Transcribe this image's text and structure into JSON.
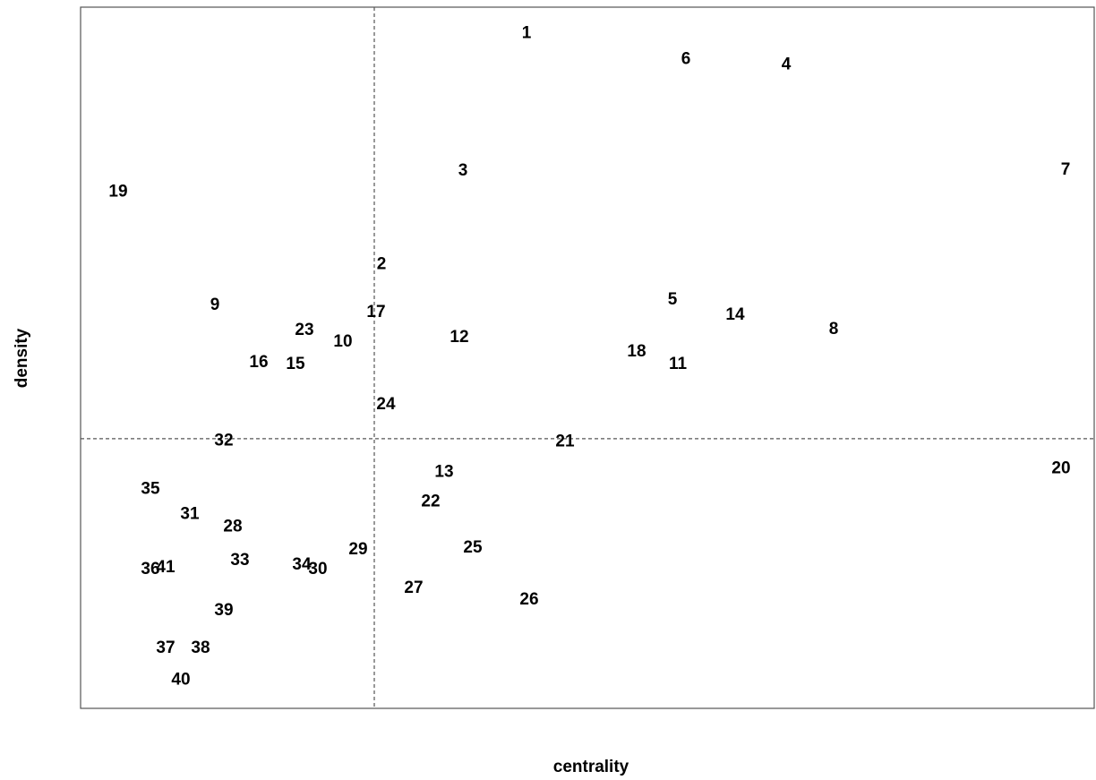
{
  "chart_data": {
    "type": "scatter",
    "title": "",
    "xlabel": "centrality",
    "ylabel": "density",
    "grid": false,
    "axis_ticks_shown": false,
    "marker": "text-label",
    "reference_lines": {
      "x": 0,
      "y": 0,
      "style": "dashed"
    },
    "xlim": [
      -3.28,
      8.04
    ],
    "ylim": [
      -3.0,
      4.8
    ],
    "points": [
      {
        "label": "1",
        "x": 1.7,
        "y": 4.51
      },
      {
        "label": "2",
        "x": 0.08,
        "y": 1.94
      },
      {
        "label": "3",
        "x": 0.99,
        "y": 2.98
      },
      {
        "label": "4",
        "x": 4.6,
        "y": 4.16
      },
      {
        "label": "5",
        "x": 3.33,
        "y": 1.55
      },
      {
        "label": "6",
        "x": 3.48,
        "y": 4.22
      },
      {
        "label": "7",
        "x": 7.72,
        "y": 2.99
      },
      {
        "label": "8",
        "x": 5.13,
        "y": 1.22
      },
      {
        "label": "9",
        "x": -1.78,
        "y": 1.49
      },
      {
        "label": "10",
        "x": -0.35,
        "y": 1.08
      },
      {
        "label": "11",
        "x": 3.39,
        "y": 0.83
      },
      {
        "label": "12",
        "x": 0.95,
        "y": 1.13
      },
      {
        "label": "13",
        "x": 0.78,
        "y": -0.37
      },
      {
        "label": "14",
        "x": 4.03,
        "y": 1.38
      },
      {
        "label": "15",
        "x": -0.88,
        "y": 0.83
      },
      {
        "label": "16",
        "x": -1.29,
        "y": 0.85
      },
      {
        "label": "17",
        "x": 0.02,
        "y": 1.41
      },
      {
        "label": "18",
        "x": 2.93,
        "y": 0.97
      },
      {
        "label": "19",
        "x": -2.86,
        "y": 2.75
      },
      {
        "label": "20",
        "x": 7.67,
        "y": -0.33
      },
      {
        "label": "21",
        "x": 2.13,
        "y": -0.03
      },
      {
        "label": "22",
        "x": 0.63,
        "y": -0.7
      },
      {
        "label": "23",
        "x": -0.78,
        "y": 1.21
      },
      {
        "label": "24",
        "x": 0.13,
        "y": 0.38
      },
      {
        "label": "25",
        "x": 1.1,
        "y": -1.21
      },
      {
        "label": "26",
        "x": 1.73,
        "y": -1.79
      },
      {
        "label": "27",
        "x": 0.44,
        "y": -1.66
      },
      {
        "label": "28",
        "x": -1.58,
        "y": -0.98
      },
      {
        "label": "29",
        "x": -0.18,
        "y": -1.23
      },
      {
        "label": "30",
        "x": -0.63,
        "y": -1.45
      },
      {
        "label": "31",
        "x": -2.06,
        "y": -0.84
      },
      {
        "label": "32",
        "x": -1.68,
        "y": -0.02
      },
      {
        "label": "33",
        "x": -1.5,
        "y": -1.35
      },
      {
        "label": "34",
        "x": -0.81,
        "y": -1.4
      },
      {
        "label": "35",
        "x": -2.5,
        "y": -0.56
      },
      {
        "label": "36",
        "x": -2.5,
        "y": -1.45
      },
      {
        "label": "37",
        "x": -2.33,
        "y": -2.33
      },
      {
        "label": "38",
        "x": -1.94,
        "y": -2.33
      },
      {
        "label": "39",
        "x": -1.68,
        "y": -1.91
      },
      {
        "label": "40",
        "x": -2.16,
        "y": -2.68
      },
      {
        "label": "41",
        "x": -2.33,
        "y": -1.43
      }
    ]
  }
}
